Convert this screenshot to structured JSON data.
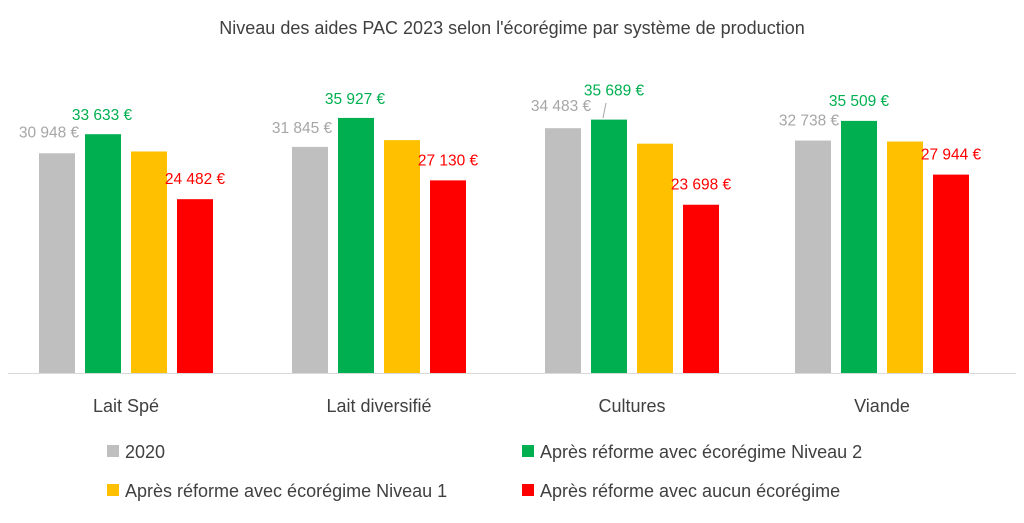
{
  "chart_data": {
    "type": "bar",
    "title": "Niveau des aides PAC 2023 selon l'écorégime par système de production",
    "xlabel": "",
    "ylabel": "",
    "categories": [
      "Lait Spé",
      "Lait diversifié",
      "Cultures",
      "Viande"
    ],
    "ylim": [
      0,
      40000
    ],
    "grid": false,
    "legend_position": "bottom",
    "series": [
      {
        "name": "2020",
        "color": "#bfbfbf",
        "label_color": "#a6a6a6",
        "values": [
          30948,
          31845,
          34483,
          32738
        ],
        "labels": [
          "30 948 €",
          "31 845 €",
          "34 483 €",
          "32 738 €"
        ]
      },
      {
        "name": "Après réforme avec écorégime Niveau 2",
        "color": "#00b050",
        "label_color": "#00b050",
        "values": [
          33633,
          35927,
          35689,
          35509
        ],
        "labels": [
          "33 633 €",
          "35 927 €",
          "35 689 €",
          "35 509 €"
        ]
      },
      {
        "name": "Après réforme avec écorégime Niveau 1",
        "color": "#ffc000",
        "label_color": "#ffc000",
        "values": [
          31200,
          32800,
          32300,
          32600
        ],
        "labels": []
      },
      {
        "name": "Après réforme avec aucun écorégime",
        "color": "#ff0000",
        "label_color": "#ff0000",
        "values": [
          24482,
          27130,
          23698,
          27944
        ],
        "labels": [
          "24 482 €",
          "27 130 €",
          "23 698 €",
          "27 944 €"
        ]
      }
    ]
  }
}
